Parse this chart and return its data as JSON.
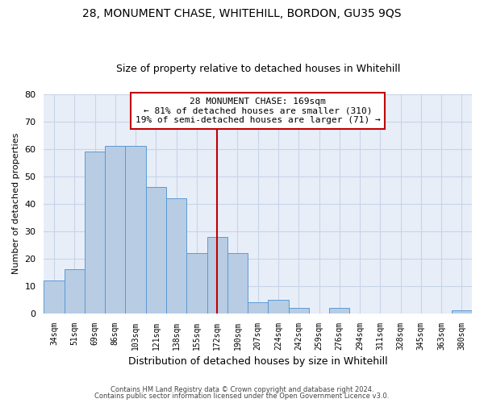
{
  "title": "28, MONUMENT CHASE, WHITEHILL, BORDON, GU35 9QS",
  "subtitle": "Size of property relative to detached houses in Whitehill",
  "xlabel": "Distribution of detached houses by size in Whitehill",
  "ylabel": "Number of detached properties",
  "footer1": "Contains HM Land Registry data © Crown copyright and database right 2024.",
  "footer2": "Contains public sector information licensed under the Open Government Licence v3.0.",
  "categories": [
    "34sqm",
    "51sqm",
    "69sqm",
    "86sqm",
    "103sqm",
    "121sqm",
    "138sqm",
    "155sqm",
    "172sqm",
    "190sqm",
    "207sqm",
    "224sqm",
    "242sqm",
    "259sqm",
    "276sqm",
    "294sqm",
    "311sqm",
    "328sqm",
    "345sqm",
    "363sqm",
    "380sqm"
  ],
  "values": [
    12,
    16,
    59,
    61,
    61,
    46,
    42,
    22,
    28,
    22,
    4,
    5,
    2,
    0,
    2,
    0,
    0,
    0,
    0,
    0,
    1
  ],
  "bar_color": "#b8cce4",
  "bar_edge_color": "#5b9bd5",
  "property_line_index": 8,
  "property_line_color": "#c00000",
  "annotation_line1": "28 MONUMENT CHASE: 169sqm",
  "annotation_line2": "← 81% of detached houses are smaller (310)",
  "annotation_line3": "19% of semi-detached houses are larger (71) →",
  "annotation_box_color": "#c00000",
  "ylim": [
    0,
    80
  ],
  "yticks": [
    0,
    10,
    20,
    30,
    40,
    50,
    60,
    70,
    80
  ],
  "grid_color": "#c8d4e8",
  "background_color": "#e8eef8",
  "title_fontsize": 10,
  "subtitle_fontsize": 9,
  "annotation_fontsize": 8
}
